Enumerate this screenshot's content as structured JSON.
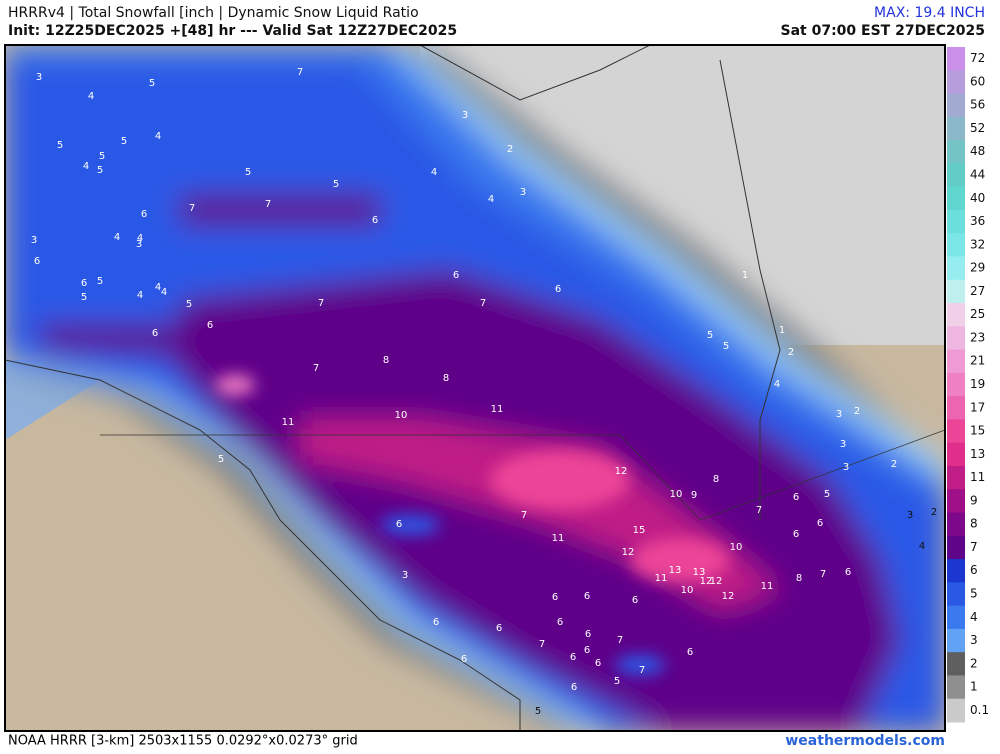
{
  "header": {
    "title": "HRRRv4 | Total Snowfall [inch | Dynamic Snow Liquid Ratio",
    "init": "Init: 12Z25DEC2025 +[48] hr --- Valid Sat 12Z27DEC2025",
    "max": "MAX: 19.4 INCH",
    "valid": "Sat 07:00 EST 27DEC2025"
  },
  "footer": {
    "grid": "NOAA HRRR [3-km] 2503x1155 0.0292°x0.0273° grid",
    "site": "weathermodels.com"
  },
  "colorbar": {
    "labels": [
      72,
      60,
      56,
      52,
      48,
      44,
      40,
      36,
      32,
      29,
      27,
      25,
      23,
      21,
      19,
      17,
      15,
      13,
      11,
      9,
      8,
      7,
      6,
      5,
      4,
      3,
      2,
      1,
      0.1
    ],
    "colors": [
      "#c98fe9",
      "#b79ddc",
      "#a2aad2",
      "#8bb9ca",
      "#74c4c6",
      "#62cdc6",
      "#5fd6ce",
      "#6adfdb",
      "#7ae6e6",
      "#95edf0",
      "#bff0ee",
      "#f2cfe9",
      "#f0b6e2",
      "#ef9ad4",
      "#ef80c4",
      "#ed64b0",
      "#ec4598",
      "#df2e8b",
      "#c01d86",
      "#9f0f88",
      "#7e088a",
      "#5e0589",
      "#1b37cf",
      "#2a59e6",
      "#3b7aee",
      "#62a2f4",
      "#5f5f5f",
      "#8f8f8f",
      "#cacaca"
    ]
  },
  "map_labels": [
    3,
    4,
    5,
    7,
    3,
    2,
    5,
    5,
    4,
    5,
    4,
    5,
    5,
    5,
    4,
    3,
    4,
    6,
    7,
    7,
    6,
    3,
    4,
    4,
    3,
    6,
    5,
    6,
    6,
    6,
    4,
    4,
    4,
    5,
    5,
    6,
    7,
    7,
    6,
    1,
    1,
    2,
    5,
    5,
    4,
    7,
    8,
    8,
    10,
    11,
    11,
    5,
    3,
    2,
    3,
    3,
    2,
    12,
    10,
    9,
    8,
    7,
    6,
    5,
    6,
    3,
    2,
    4,
    6,
    7,
    11,
    15,
    12,
    6,
    10,
    3,
    13,
    11,
    13,
    12,
    12,
    10,
    12,
    11,
    8,
    7,
    6,
    6,
    6,
    6,
    6,
    6,
    6,
    6,
    7,
    7,
    6,
    6,
    6,
    6,
    7,
    6,
    5,
    6,
    5,
    2
  ]
}
